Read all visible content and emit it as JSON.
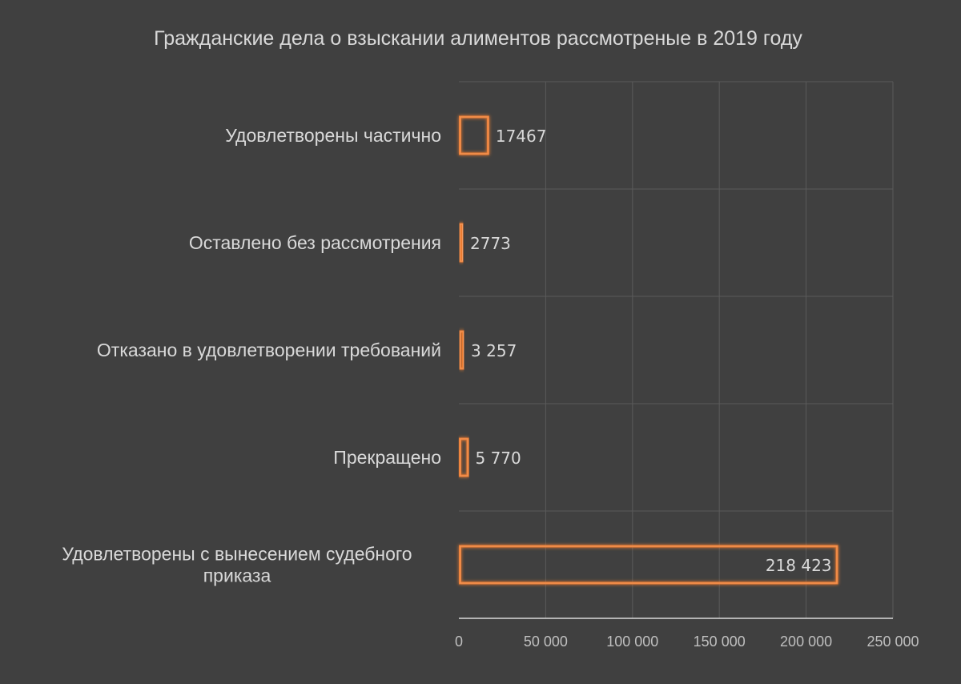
{
  "chart_data": {
    "type": "bar",
    "orientation": "horizontal",
    "title": "Гражданские дела о взыскании алиментов рассмотреные в 2019 году",
    "xlabel": "",
    "ylabel": "",
    "xlim": [
      0,
      250000
    ],
    "x_ticks": [
      0,
      50000,
      100000,
      150000,
      200000,
      250000
    ],
    "x_tick_labels": [
      "0",
      "50 000",
      "100 000",
      "150 000",
      "200 000",
      "250 000"
    ],
    "grid": true,
    "legend": "none",
    "categories": [
      [
        "Удовлетворены частично"
      ],
      [
        "Оставлено без рассмотрения"
      ],
      [
        "Отказано в удовлетворении требований"
      ],
      [
        "Прекращено"
      ],
      [
        "Удовлетворены с вынесением судебного",
        "приказа"
      ]
    ],
    "values": [
      17467,
      2773,
      3257,
      5770,
      218423
    ],
    "data_labels": [
      "17467",
      "2773",
      "3 257",
      "5 770",
      "218 423"
    ],
    "colors": {
      "background": "#404040",
      "bar_outline": "#ed7d31",
      "bar_glow": "#f4b183",
      "text": "#d9d9d9",
      "grid": "#5a5a5a"
    }
  }
}
